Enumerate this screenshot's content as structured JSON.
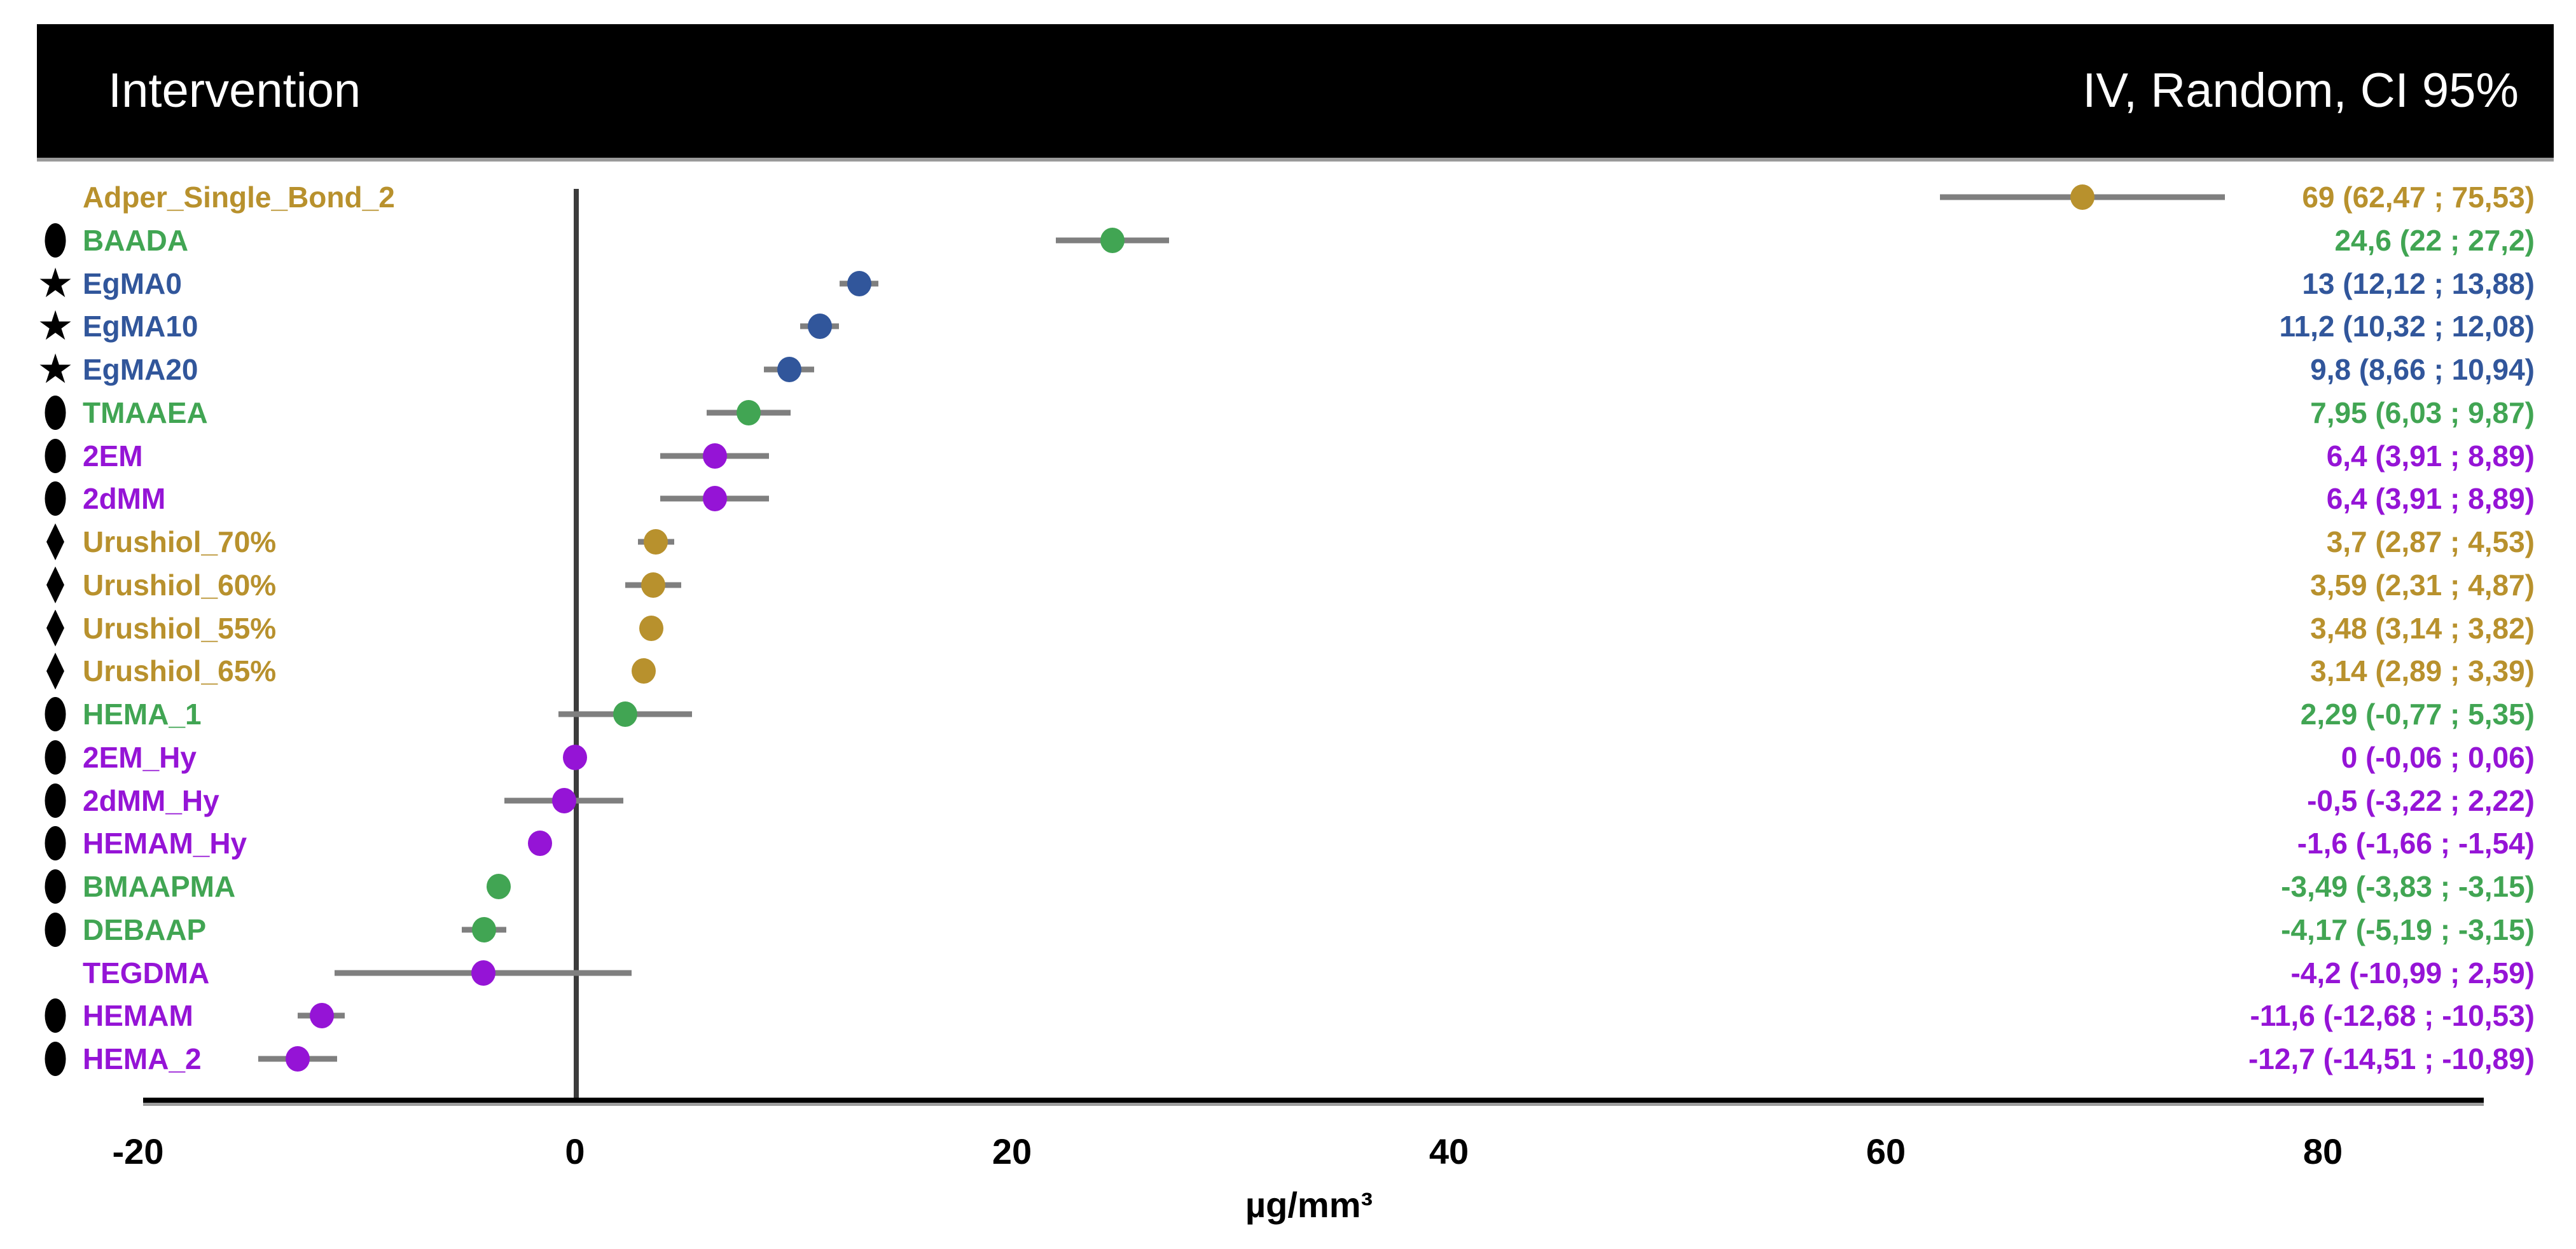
{
  "header": {
    "left_label": "Intervention",
    "right_label": "IV, Random, CI 95%"
  },
  "colors": {
    "gold": "#B8912D",
    "green": "#41A553",
    "blue": "#31569B",
    "purple": "#9514D6",
    "ci_gray": "#7F7F7F",
    "header_bg": "#000000",
    "header_text": "#FFFFFF",
    "axis_black": "#000000"
  },
  "chart_data": {
    "type": "scatter",
    "subtype": "forest-plot",
    "title": "",
    "xlabel": "µg/mm³",
    "ylabel": "",
    "xlim": [
      -20,
      87
    ],
    "x_ticks": [
      {
        "value": -20,
        "label": "-20"
      },
      {
        "value": 0,
        "label": "0"
      },
      {
        "value": 20,
        "label": "20"
      },
      {
        "value": 40,
        "label": "40"
      },
      {
        "value": 60,
        "label": "60"
      },
      {
        "value": 80,
        "label": "80"
      },
      {
        "value": 0,
        "label": ""
      }
    ],
    "grid": false,
    "legend_position": "none",
    "points": [
      {
        "label": "Adper_Single_Bond_2",
        "symbol": "none",
        "color": "gold",
        "mean": 69,
        "ci_low": 62.47,
        "ci_high": 75.53,
        "display": "69 (62,47 ; 75,53)"
      },
      {
        "label": "BAADA",
        "symbol": "circle",
        "color": "green",
        "mean": 24.6,
        "ci_low": 22,
        "ci_high": 27.2,
        "display": "24,6 (22 ; 27,2)"
      },
      {
        "label": "EgMA0",
        "symbol": "star",
        "color": "blue",
        "mean": 13,
        "ci_low": 12.12,
        "ci_high": 13.88,
        "display": "13 (12,12 ; 13,88)"
      },
      {
        "label": "EgMA10",
        "symbol": "star",
        "color": "blue",
        "mean": 11.2,
        "ci_low": 10.32,
        "ci_high": 12.08,
        "display": "11,2 (10,32 ; 12,08)"
      },
      {
        "label": "EgMA20",
        "symbol": "star",
        "color": "blue",
        "mean": 9.8,
        "ci_low": 8.66,
        "ci_high": 10.94,
        "display": "9,8 (8,66 ; 10,94)"
      },
      {
        "label": "TMAAEA",
        "symbol": "circle",
        "color": "green",
        "mean": 7.95,
        "ci_low": 6.03,
        "ci_high": 9.87,
        "display": "7,95 (6,03 ; 9,87)"
      },
      {
        "label": "2EM",
        "symbol": "circle",
        "color": "purple",
        "mean": 6.4,
        "ci_low": 3.91,
        "ci_high": 8.89,
        "display": "6,4 (3,91 ; 8,89)"
      },
      {
        "label": "2dMM",
        "symbol": "circle",
        "color": "purple",
        "mean": 6.4,
        "ci_low": 3.91,
        "ci_high": 8.89,
        "display": "6,4 (3,91 ; 8,89)"
      },
      {
        "label": "Urushiol_70%",
        "symbol": "diamond",
        "color": "gold",
        "mean": 3.7,
        "ci_low": 2.87,
        "ci_high": 4.53,
        "display": "3,7 (2,87 ; 4,53)"
      },
      {
        "label": "Urushiol_60%",
        "symbol": "diamond",
        "color": "gold",
        "mean": 3.59,
        "ci_low": 2.31,
        "ci_high": 4.87,
        "display": "3,59 (2,31 ; 4,87)"
      },
      {
        "label": "Urushiol_55%",
        "symbol": "diamond",
        "color": "gold",
        "mean": 3.48,
        "ci_low": 3.14,
        "ci_high": 3.82,
        "display": "3,48 (3,14 ; 3,82)"
      },
      {
        "label": "Urushiol_65%",
        "symbol": "diamond",
        "color": "gold",
        "mean": 3.14,
        "ci_low": 2.89,
        "ci_high": 3.39,
        "display": "3,14 (2,89 ; 3,39)"
      },
      {
        "label": "HEMA_1",
        "symbol": "circle",
        "color": "green",
        "mean": 2.29,
        "ci_low": -0.77,
        "ci_high": 5.35,
        "display": "2,29 (-0,77 ; 5,35)"
      },
      {
        "label": "2EM_Hy",
        "symbol": "circle",
        "color": "purple",
        "mean": 0,
        "ci_low": -0.06,
        "ci_high": 0.06,
        "display": "0 (-0,06 ; 0,06)"
      },
      {
        "label": "2dMM_Hy",
        "symbol": "circle",
        "color": "purple",
        "mean": -0.5,
        "ci_low": -3.22,
        "ci_high": 2.22,
        "display": "-0,5 (-3,22 ; 2,22)"
      },
      {
        "label": "HEMAM_Hy",
        "symbol": "circle",
        "color": "purple",
        "mean": -1.6,
        "ci_low": -1.66,
        "ci_high": -1.54,
        "display": "-1,6 (-1,66 ; -1,54)"
      },
      {
        "label": "BMAAPMA",
        "symbol": "circle",
        "color": "green",
        "mean": -3.49,
        "ci_low": -3.83,
        "ci_high": -3.15,
        "display": "-3,49 (-3,83 ; -3,15)"
      },
      {
        "label": "DEBAAP",
        "symbol": "circle",
        "color": "green",
        "mean": -4.17,
        "ci_low": -5.19,
        "ci_high": -3.15,
        "display": "-4,17 (-5,19 ; -3,15)"
      },
      {
        "label": "TEGDMA",
        "symbol": "none",
        "color": "purple",
        "mean": -4.2,
        "ci_low": -10.99,
        "ci_high": 2.59,
        "display": "-4,2 (-10,99 ; 2,59)"
      },
      {
        "label": "HEMAM",
        "symbol": "circle",
        "color": "purple",
        "mean": -11.6,
        "ci_low": -12.68,
        "ci_high": -10.53,
        "display": "-11,6 (-12,68 ; -10,53)"
      },
      {
        "label": "HEMA_2",
        "symbol": "circle",
        "color": "purple",
        "mean": -12.7,
        "ci_low": -14.51,
        "ci_high": -10.89,
        "display": "-12,7 (-14,51 ; -10,89)"
      }
    ]
  }
}
